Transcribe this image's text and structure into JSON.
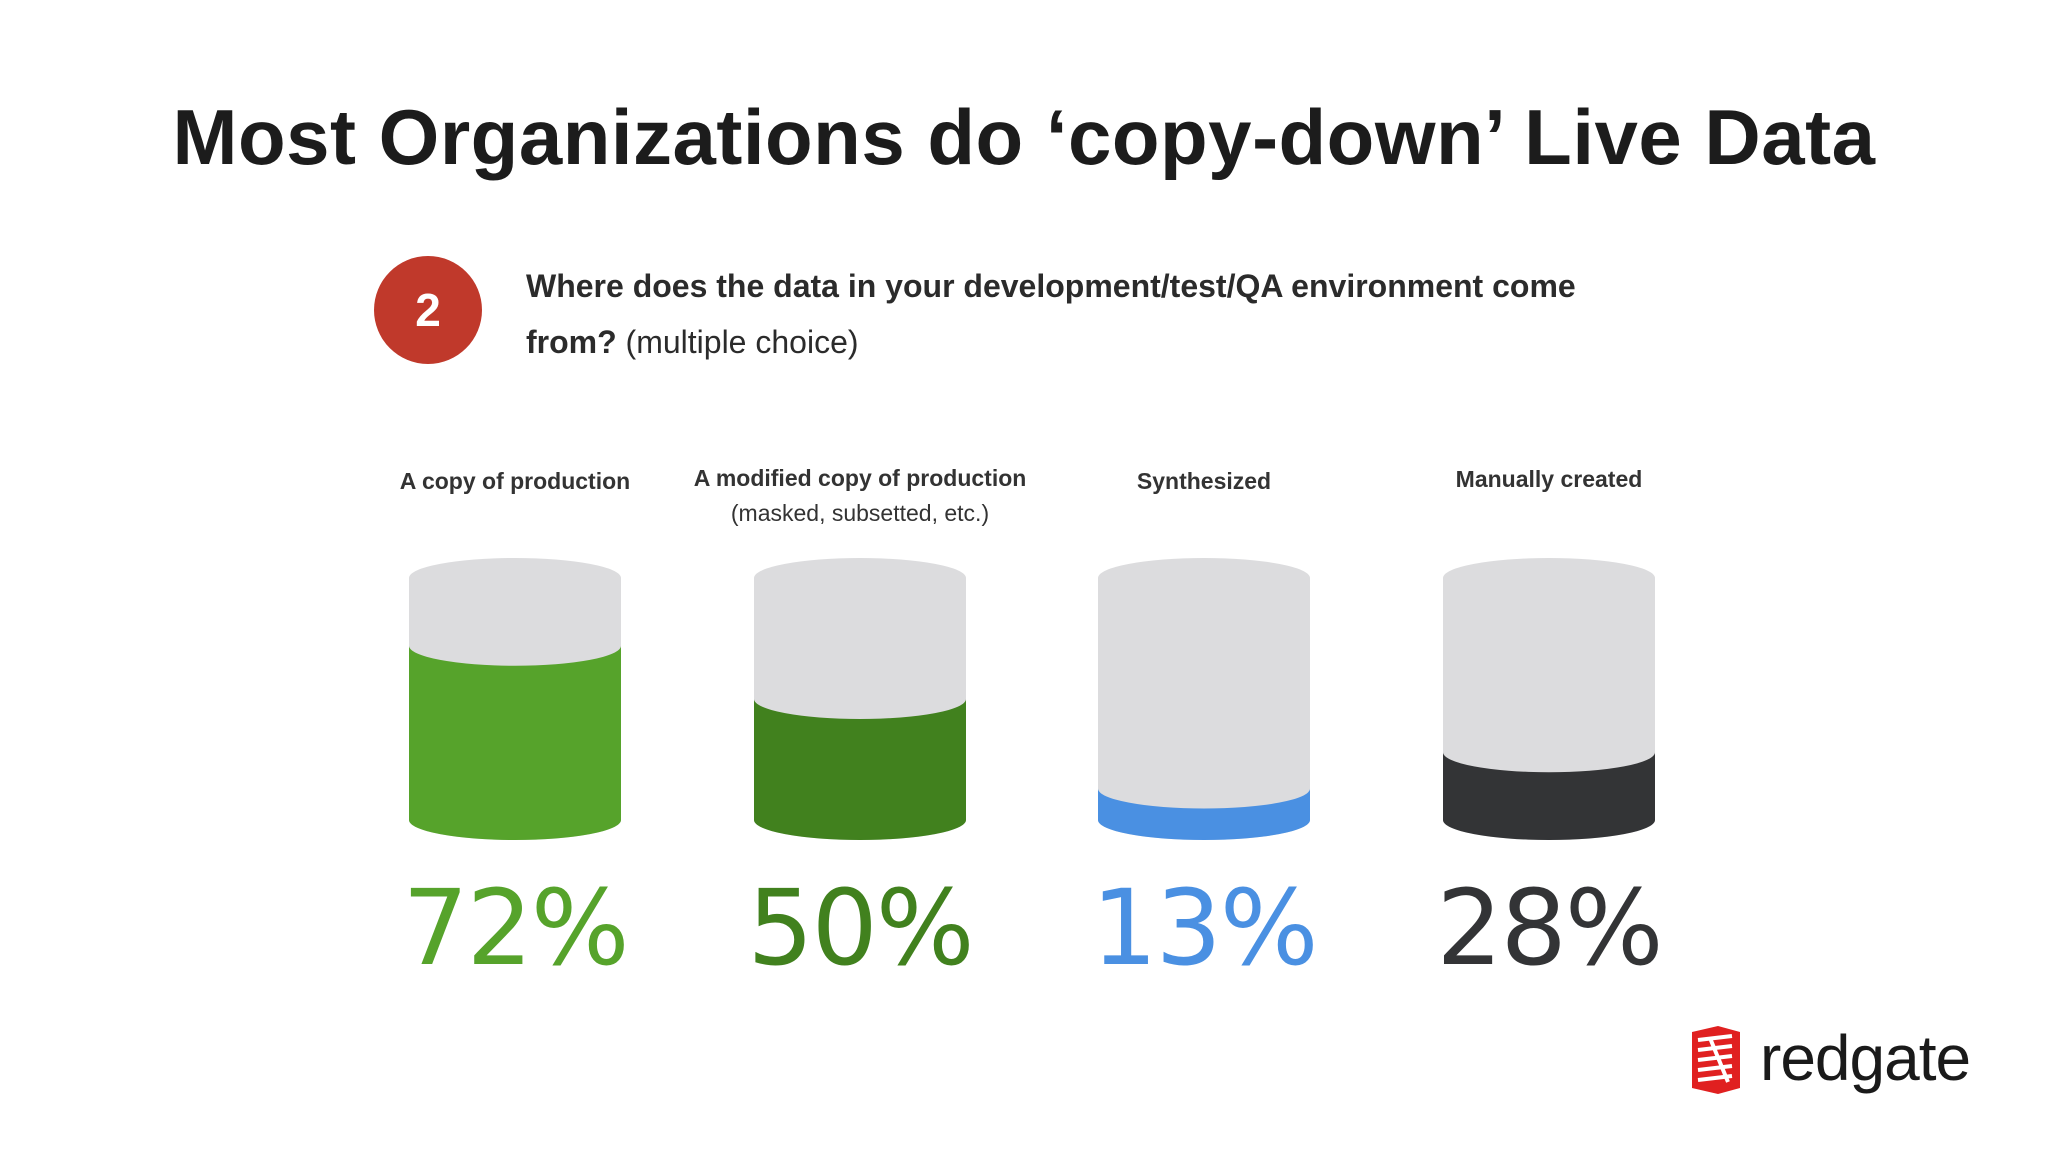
{
  "slide": {
    "title": "Most Organizations do ‘copy-down’ Live Data"
  },
  "question": {
    "number": "2",
    "text_bold": "Where does the data in your development/test/QA environment come from?",
    "text_normal": "(multiple choice)",
    "badge_color": "#c0392b"
  },
  "chart_data": {
    "type": "bar",
    "categories": [
      "A copy of production",
      "A modified copy of production",
      "Synthesized",
      "Manually created"
    ],
    "category_notes": [
      "",
      "(masked, subsetted, etc.)",
      "",
      ""
    ],
    "values": [
      72,
      50,
      13,
      28
    ],
    "value_labels": [
      "72%",
      "50%",
      "13%",
      "28%"
    ],
    "colors": [
      "#56a32b",
      "#41811e",
      "#4a90e2",
      "#333436"
    ],
    "empty_color": "#dcdcde",
    "ylim": [
      0,
      100
    ],
    "grid": false,
    "legend": "none"
  },
  "logo": {
    "text": "redgate",
    "icon": "redgate-logo-icon",
    "color": "#e02020"
  }
}
